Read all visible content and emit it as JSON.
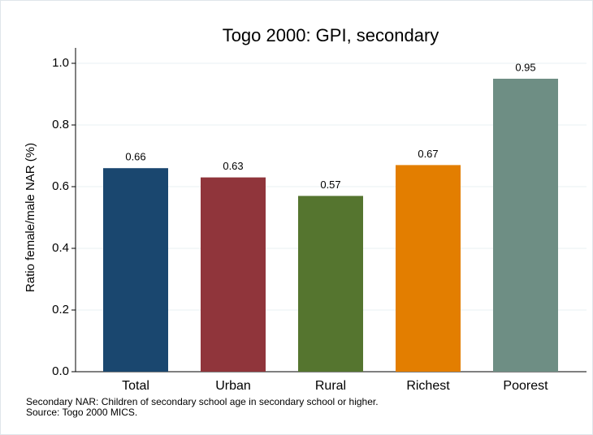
{
  "chart_data": {
    "type": "bar",
    "title": "Togo 2000: GPI, secondary",
    "y_label": "Ratio female/male NAR (%)",
    "categories": [
      "Total",
      "Urban",
      "Rural",
      "Richest",
      "Poorest"
    ],
    "values": [
      0.66,
      0.63,
      0.57,
      0.67,
      0.95
    ],
    "colors": [
      "#1a476f",
      "#90353b",
      "#55752f",
      "#e37e00",
      "#6e8e84"
    ],
    "ylim": [
      0,
      1.05
    ],
    "yticks": [
      {
        "value": 0,
        "label": "0.0"
      },
      0.2,
      0.4,
      0.6,
      0.8,
      {
        "value": 1,
        "label": "1.0"
      }
    ],
    "grid": true,
    "notes": [
      "Secondary NAR: Children of secondary school age in secondary school or higher.",
      "Source: Togo 2000 MICS."
    ]
  }
}
